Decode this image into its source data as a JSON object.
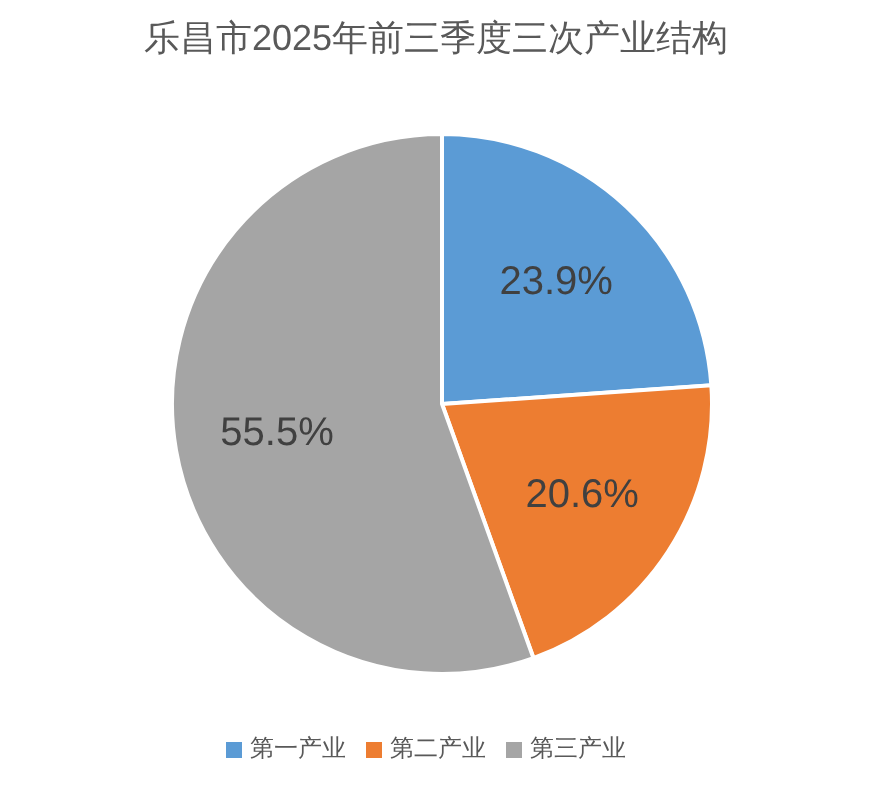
{
  "chart_data": {
    "type": "pie",
    "title": "乐昌市2025年前三季度三次产业结构",
    "categories": [
      "第一产业",
      "第二产业",
      "第三产业"
    ],
    "values": [
      23.9,
      20.6,
      55.5
    ],
    "colors": [
      "#5b9bd5",
      "#ed7d31",
      "#a5a5a5"
    ],
    "value_labels": [
      "23.9%",
      "20.6%",
      "55.5%"
    ],
    "legend": "bottom"
  }
}
